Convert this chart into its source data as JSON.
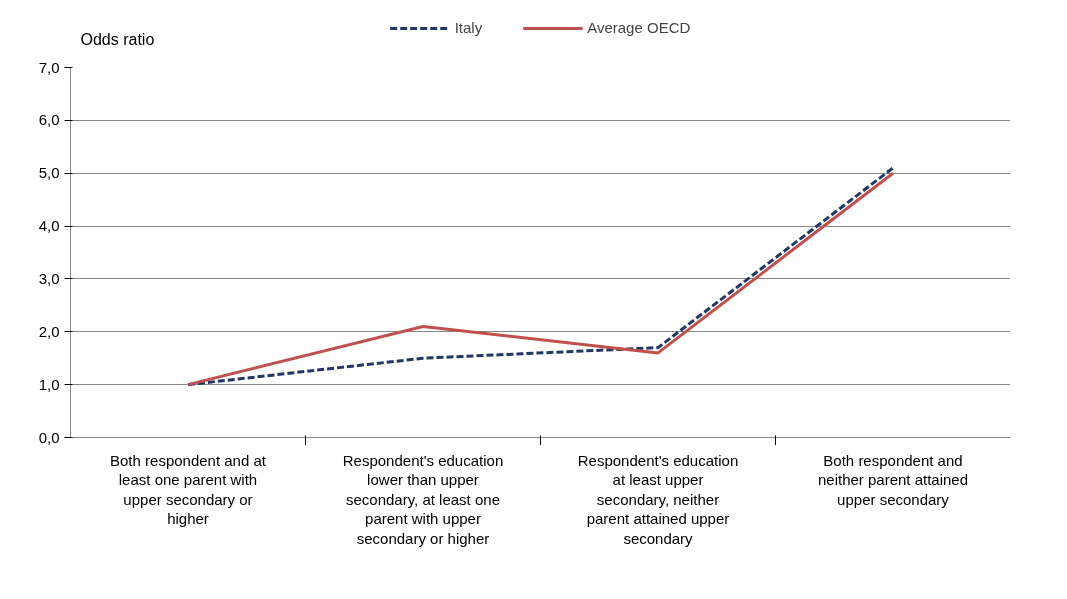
{
  "chart_data": {
    "type": "line",
    "ylabel": "Odds ratio",
    "categories": [
      "Both respondent and at least one parent with upper secondary or higher",
      "Respondent's education lower than upper secondary, at least one parent with upper secondary or higher",
      "Respondent's education at least upper secondary, neither parent attained upper secondary",
      "Both respondent and neither parent attained upper secondary"
    ],
    "series": [
      {
        "name": "Italy",
        "color": "#1f3864",
        "line_style": "dashed",
        "values": [
          1.0,
          1.5,
          1.7,
          5.1
        ]
      },
      {
        "name": "Average OECD",
        "color": "#c0504d",
        "line_style": "solid",
        "values": [
          1.0,
          2.1,
          1.6,
          5.0
        ]
      }
    ],
    "ylim": [
      0,
      7
    ],
    "yticks": [
      {
        "value": 0,
        "label": "0,0"
      },
      {
        "value": 1,
        "label": "1,0"
      },
      {
        "value": 2,
        "label": "2,0"
      },
      {
        "value": 3,
        "label": "3,0"
      },
      {
        "value": 4,
        "label": "4,0"
      },
      {
        "value": 5,
        "label": "5,0"
      },
      {
        "value": 6,
        "label": "6,0"
      },
      {
        "value": 7,
        "label": "7,0"
      }
    ],
    "grid": "y",
    "legend": "top",
    "marker": "none"
  }
}
